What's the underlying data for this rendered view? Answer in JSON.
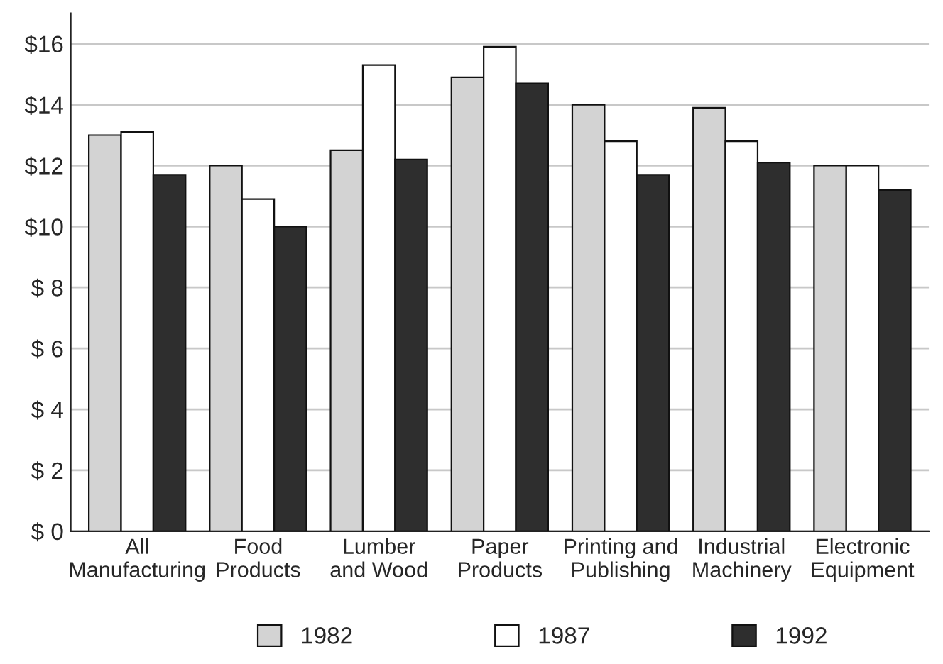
{
  "chart_data": {
    "type": "bar",
    "categories": [
      "All\nManufacturing",
      "Food\nProducts",
      "Lumber\nand Wood",
      "Paper\nProducts",
      "Printing and\nPublishing",
      "Industrial\nMachinery",
      "Electronic\nEquipment"
    ],
    "series": [
      {
        "name": "1982",
        "color": "#d3d3d3",
        "values": [
          13.0,
          12.0,
          12.5,
          14.9,
          14.0,
          13.9,
          12.0
        ]
      },
      {
        "name": "1987",
        "color": "#ffffff",
        "values": [
          13.1,
          10.9,
          15.3,
          15.9,
          12.8,
          12.8,
          12.0
        ]
      },
      {
        "name": "1992",
        "color": "#2e2e2e",
        "values": [
          11.7,
          10.0,
          12.2,
          14.7,
          11.7,
          12.1,
          11.2
        ]
      }
    ],
    "ylim": [
      0,
      17
    ],
    "yticks": [
      {
        "value": 0,
        "label": "$ 0"
      },
      {
        "value": 2,
        "label": "$ 2"
      },
      {
        "value": 4,
        "label": "$ 4"
      },
      {
        "value": 6,
        "label": "$ 6"
      },
      {
        "value": 8,
        "label": "$ 8"
      },
      {
        "value": 10,
        "label": "$10"
      },
      {
        "value": 12,
        "label": "$12"
      },
      {
        "value": 14,
        "label": "$14"
      },
      {
        "value": 16,
        "label": "$16"
      }
    ],
    "grid": "y",
    "legend": "bottom"
  }
}
